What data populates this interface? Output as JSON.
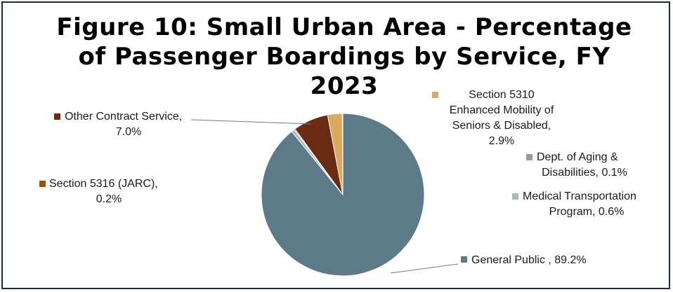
{
  "chart_data": {
    "type": "pie",
    "title_lines": [
      "Figure 10: Small Urban Area - Percentage",
      "of Passenger  Boardings by Service, FY",
      "2023"
    ],
    "slices": [
      {
        "name": "General Public",
        "value": 89.2,
        "display": "General Public , 89.2%",
        "color": "#5d7a88"
      },
      {
        "name": "Medical Transportation Program",
        "value": 0.6,
        "display": "Medical Transportation Program, 0.6%",
        "color": "#a7b9c2"
      },
      {
        "name": "Section 5316 (JARC)",
        "value": 0.2,
        "display": "Section 5316 (JARC), 0.2%",
        "color": "#9a4f12"
      },
      {
        "name": "Other Contract Service",
        "value": 7.0,
        "display": "Other Contract Service, 7.0%",
        "color": "#6b2a12"
      },
      {
        "name": "Section 5310 Enhanced Mobility of Seniors & Disabled",
        "value": 2.9,
        "display": "Section 5310 Enhanced Mobility of Seniors & Disabled, 2.9%",
        "color": "#d9a95e"
      },
      {
        "name": "Dept. of Aging & Disabilities",
        "value": 0.1,
        "display": "Dept. of Aging & Disabilities, 0.1%",
        "color": "#8d9ea8"
      }
    ],
    "labels": {
      "other_contract": [
        "Other Contract Service,",
        "7.0%"
      ],
      "jarc": [
        "Section 5316 (JARC),",
        "0.2%"
      ],
      "section5310": [
        "Section 5310",
        "Enhanced Mobility of",
        "Seniors & Disabled,",
        "2.9%"
      ],
      "aging": [
        "Dept. of Aging &",
        "Disabilities, 0.1%"
      ],
      "medical": [
        "Medical Transportation",
        "Program, 0.6%"
      ],
      "general": [
        "General Public , 89.2%"
      ]
    }
  }
}
